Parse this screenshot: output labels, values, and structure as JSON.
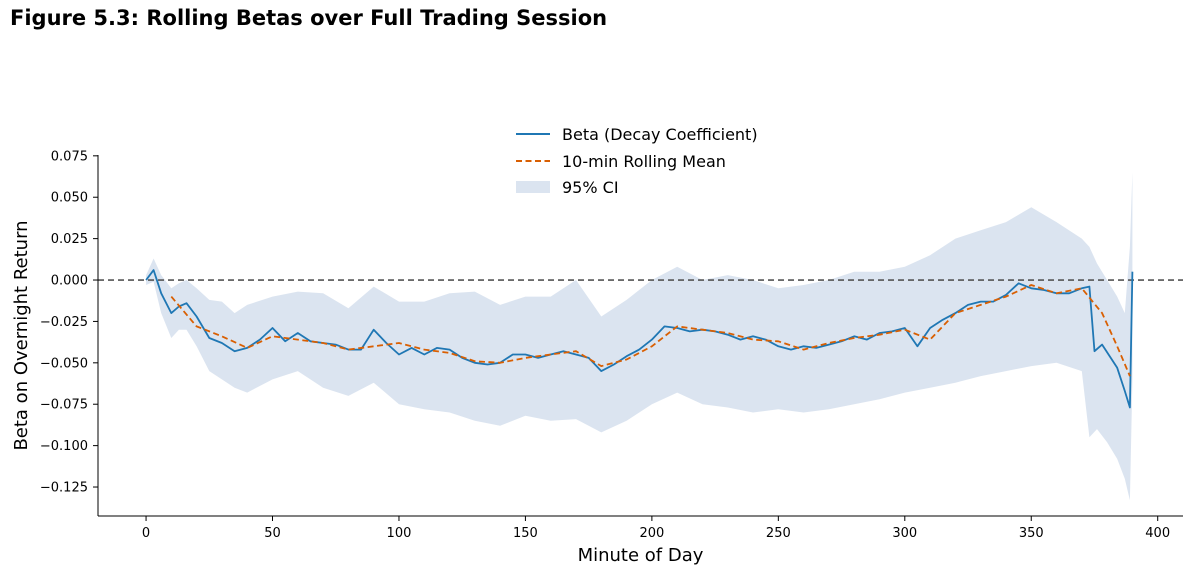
{
  "figure_title": "Figure 5.3: Rolling Betas over Full Trading Session",
  "colors": {
    "beta": "#1f77b4",
    "rolling_mean": "#d95f02",
    "ci_fill": "#b0c4de",
    "zero_line": "#555555",
    "axis": "#000000"
  },
  "chart_data": {
    "type": "line",
    "title": "Figure 5.3: Rolling Betas over Full Trading Session",
    "xlabel": "Minute of Day",
    "ylabel": "Beta on Overnight Return",
    "xlim": [
      -19,
      410
    ],
    "ylim": [
      -0.1425,
      0.0755
    ],
    "xticks": [
      0,
      50,
      100,
      150,
      200,
      250,
      300,
      350,
      400
    ],
    "xtick_labels": [
      "0",
      "50",
      "100",
      "150",
      "200",
      "250",
      "300",
      "350",
      "400"
    ],
    "yticks": [
      0.075,
      0.05,
      0.025,
      0.0,
      -0.025,
      -0.05,
      -0.075,
      -0.1,
      -0.125
    ],
    "ytick_labels": [
      "0.075",
      "0.050",
      "0.025",
      "0.000",
      "−0.025",
      "−0.050",
      "−0.075",
      "−0.100",
      "−0.125"
    ],
    "hline": {
      "y": 0.0,
      "style": "dashed"
    },
    "legend": {
      "placement": "top-center",
      "entries": [
        "Beta (Decay Coefficient)",
        "10-min Rolling Mean",
        "95% CI"
      ]
    },
    "grid": false,
    "series": [
      {
        "name": "Beta (Decay Coefficient)",
        "style": "solid",
        "x": [
          0,
          3,
          6,
          10,
          13,
          16,
          20,
          25,
          30,
          35,
          40,
          45,
          50,
          55,
          60,
          65,
          70,
          75,
          80,
          85,
          90,
          95,
          100,
          105,
          110,
          115,
          120,
          125,
          130,
          135,
          140,
          145,
          150,
          155,
          160,
          165,
          170,
          175,
          180,
          185,
          190,
          195,
          200,
          205,
          210,
          215,
          220,
          225,
          230,
          235,
          240,
          245,
          250,
          255,
          260,
          265,
          270,
          275,
          280,
          285,
          290,
          295,
          300,
          305,
          310,
          315,
          320,
          325,
          330,
          335,
          340,
          345,
          350,
          355,
          360,
          365,
          370,
          373,
          375,
          378,
          381,
          384,
          387,
          389,
          390
        ],
        "y": [
          0.0,
          0.006,
          -0.008,
          -0.02,
          -0.016,
          -0.014,
          -0.022,
          -0.035,
          -0.038,
          -0.043,
          -0.041,
          -0.036,
          -0.029,
          -0.037,
          -0.032,
          -0.037,
          -0.038,
          -0.039,
          -0.042,
          -0.042,
          -0.03,
          -0.038,
          -0.045,
          -0.041,
          -0.045,
          -0.041,
          -0.042,
          -0.047,
          -0.05,
          -0.051,
          -0.05,
          -0.045,
          -0.045,
          -0.047,
          -0.045,
          -0.043,
          -0.045,
          -0.047,
          -0.055,
          -0.051,
          -0.046,
          -0.042,
          -0.036,
          -0.028,
          -0.029,
          -0.031,
          -0.03,
          -0.031,
          -0.033,
          -0.036,
          -0.034,
          -0.036,
          -0.04,
          -0.042,
          -0.04,
          -0.041,
          -0.039,
          -0.037,
          -0.034,
          -0.036,
          -0.032,
          -0.031,
          -0.029,
          -0.04,
          -0.029,
          -0.024,
          -0.02,
          -0.015,
          -0.013,
          -0.013,
          -0.009,
          -0.002,
          -0.005,
          -0.006,
          -0.008,
          -0.008,
          -0.005,
          -0.004,
          -0.043,
          -0.039,
          -0.046,
          -0.053,
          -0.067,
          -0.077,
          0.005
        ]
      },
      {
        "name": "10-min Rolling Mean",
        "style": "dashed",
        "x": [
          10,
          20,
          30,
          40,
          50,
          60,
          70,
          80,
          90,
          100,
          110,
          120,
          130,
          140,
          150,
          160,
          170,
          180,
          190,
          200,
          210,
          220,
          230,
          240,
          250,
          260,
          270,
          280,
          290,
          300,
          310,
          320,
          330,
          340,
          350,
          360,
          370,
          378,
          384,
          389
        ],
        "y": [
          -0.01,
          -0.028,
          -0.034,
          -0.041,
          -0.034,
          -0.036,
          -0.038,
          -0.042,
          -0.04,
          -0.038,
          -0.042,
          -0.044,
          -0.049,
          -0.05,
          -0.047,
          -0.045,
          -0.043,
          -0.052,
          -0.048,
          -0.04,
          -0.028,
          -0.03,
          -0.032,
          -0.036,
          -0.037,
          -0.042,
          -0.038,
          -0.035,
          -0.033,
          -0.03,
          -0.036,
          -0.02,
          -0.015,
          -0.01,
          -0.003,
          -0.008,
          -0.005,
          -0.02,
          -0.04,
          -0.058
        ]
      }
    ],
    "ci_band": {
      "name": "95% CI",
      "x": [
        0,
        3,
        6,
        10,
        13,
        16,
        20,
        25,
        30,
        35,
        40,
        50,
        60,
        70,
        80,
        90,
        100,
        110,
        120,
        130,
        140,
        150,
        160,
        170,
        180,
        190,
        200,
        210,
        220,
        230,
        240,
        250,
        260,
        270,
        280,
        290,
        300,
        310,
        320,
        330,
        340,
        350,
        360,
        370,
        373,
        376,
        380,
        384,
        387,
        389,
        390
      ],
      "upper": [
        0.003,
        0.013,
        0.003,
        -0.005,
        -0.002,
        0.0,
        -0.005,
        -0.012,
        -0.013,
        -0.02,
        -0.015,
        -0.01,
        -0.007,
        -0.008,
        -0.017,
        -0.004,
        -0.013,
        -0.013,
        -0.008,
        -0.007,
        -0.015,
        -0.01,
        -0.01,
        -0.0,
        -0.022,
        -0.012,
        0.0,
        0.008,
        0.0,
        0.003,
        0.0,
        -0.005,
        -0.003,
        0.0,
        0.005,
        0.005,
        0.008,
        0.015,
        0.025,
        0.03,
        0.035,
        0.044,
        0.035,
        0.025,
        0.02,
        0.01,
        0.0,
        -0.01,
        -0.02,
        0.02,
        0.065
      ],
      "lower": [
        -0.003,
        -0.001,
        -0.02,
        -0.035,
        -0.03,
        -0.03,
        -0.04,
        -0.055,
        -0.06,
        -0.065,
        -0.068,
        -0.06,
        -0.055,
        -0.065,
        -0.07,
        -0.062,
        -0.075,
        -0.078,
        -0.08,
        -0.085,
        -0.088,
        -0.082,
        -0.085,
        -0.084,
        -0.092,
        -0.085,
        -0.075,
        -0.068,
        -0.075,
        -0.077,
        -0.08,
        -0.078,
        -0.08,
        -0.078,
        -0.075,
        -0.072,
        -0.068,
        -0.065,
        -0.062,
        -0.058,
        -0.055,
        -0.052,
        -0.05,
        -0.055,
        -0.095,
        -0.09,
        -0.098,
        -0.108,
        -0.12,
        -0.133,
        -0.06
      ]
    }
  }
}
